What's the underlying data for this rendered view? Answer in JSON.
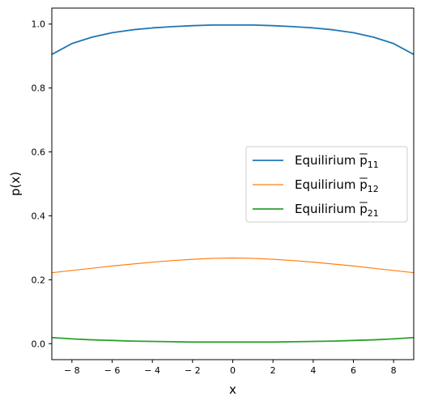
{
  "chart_data": {
    "type": "line",
    "title": "",
    "xlabel": "x",
    "ylabel": "p(x)",
    "xlim": [
      -9,
      9
    ],
    "ylim": [
      -0.05,
      1.05
    ],
    "xticks": [
      -8,
      -6,
      -4,
      -2,
      0,
      2,
      4,
      6,
      8
    ],
    "xtick_labels": [
      "− 8",
      "− 6",
      "− 4",
      "− 2",
      "0",
      "2",
      "4",
      "6",
      "8"
    ],
    "yticks": [
      0.0,
      0.2,
      0.4,
      0.6,
      0.8,
      1.0
    ],
    "ytick_labels": [
      "0.0",
      "0.2",
      "0.4",
      "0.6",
      "0.8",
      "1.0"
    ],
    "grid": false,
    "legend_position": "center-right",
    "series": [
      {
        "name": "Equilirium p̅₁₁",
        "legend_main": "Equilirium ",
        "legend_symbol": "p",
        "legend_sub": "11",
        "color": "#1f77b4",
        "x": [
          -9,
          -8,
          -7,
          -6,
          -5,
          -4,
          -3,
          -2,
          -1,
          0,
          1,
          2,
          3,
          4,
          5,
          6,
          7,
          8,
          9
        ],
        "y": [
          0.905,
          0.939,
          0.959,
          0.973,
          0.982,
          0.988,
          0.992,
          0.995,
          0.997,
          0.997,
          0.997,
          0.995,
          0.992,
          0.988,
          0.982,
          0.973,
          0.959,
          0.939,
          0.905
        ]
      },
      {
        "name": "Equilirium p̅₁₂",
        "legend_main": "Equilirium ",
        "legend_symbol": "p",
        "legend_sub": "12",
        "color": "#ff7f0e",
        "x": [
          -9,
          -8,
          -7,
          -6,
          -5,
          -4,
          -3,
          -2,
          -1,
          0,
          1,
          2,
          3,
          4,
          5,
          6,
          7,
          8,
          9
        ],
        "y": [
          0.222,
          0.229,
          0.236,
          0.243,
          0.249,
          0.255,
          0.26,
          0.264,
          0.267,
          0.268,
          0.267,
          0.264,
          0.26,
          0.255,
          0.249,
          0.243,
          0.236,
          0.229,
          0.222
        ]
      },
      {
        "name": "Equilirium p̅₂₁",
        "legend_main": "Equilirium ",
        "legend_symbol": "p",
        "legend_sub": "21",
        "color": "#2ca02c",
        "x": [
          -9,
          -8,
          -7,
          -6,
          -5,
          -4,
          -3,
          -2,
          -1,
          0,
          1,
          2,
          3,
          4,
          5,
          6,
          7,
          8,
          9
        ],
        "y": [
          0.019,
          0.015,
          0.012,
          0.01,
          0.008,
          0.007,
          0.006,
          0.005,
          0.005,
          0.005,
          0.005,
          0.005,
          0.006,
          0.007,
          0.008,
          0.01,
          0.012,
          0.015,
          0.019
        ]
      }
    ]
  }
}
